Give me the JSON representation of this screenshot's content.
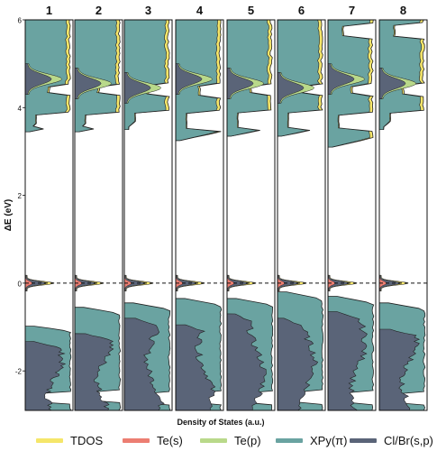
{
  "chart_data": {
    "type": "area",
    "xlabel": "Density of States (a.u.)",
    "ylabel": "ΔE (eV)",
    "ylim": [
      -2.9,
      6.0
    ],
    "yticks": [
      "-2",
      "0",
      "2",
      "4",
      "6"
    ],
    "ytick_values": [
      -2,
      0,
      2,
      4,
      6
    ],
    "fermi_level": 0,
    "panels": [
      "1",
      "2",
      "3",
      "4",
      "5",
      "6",
      "7",
      "8"
    ],
    "series": [
      {
        "name": "TDOS",
        "color": "#f5e66a"
      },
      {
        "name": "Te(s)",
        "color": "#ec7e72"
      },
      {
        "name": "Te(p)",
        "color": "#b9d98a"
      },
      {
        "name": "XPy(π)",
        "color": "#6aa3a1"
      },
      {
        "name": "Cl/Br(s,p)",
        "color": "#5a6478"
      }
    ],
    "band_edges": [
      {
        "panel": "1",
        "vbm": -0.98,
        "cbm": 3.45
      },
      {
        "panel": "2",
        "vbm": -0.55,
        "cbm": 3.45
      },
      {
        "panel": "3",
        "vbm": -0.45,
        "cbm": 3.5
      },
      {
        "panel": "4",
        "vbm": -0.35,
        "cbm": 3.25
      },
      {
        "panel": "5",
        "vbm": -0.35,
        "cbm": 3.35
      },
      {
        "panel": "6",
        "vbm": -0.2,
        "cbm": 3.35
      },
      {
        "panel": "7",
        "vbm": -0.3,
        "cbm": 3.1
      },
      {
        "panel": "8",
        "vbm": -0.45,
        "cbm": 3.5
      }
    ]
  },
  "legend": {
    "items": [
      "TDOS",
      "Te(s)",
      "Te(p)",
      "XPy(π)",
      "Cl/Br(s,p)"
    ]
  }
}
